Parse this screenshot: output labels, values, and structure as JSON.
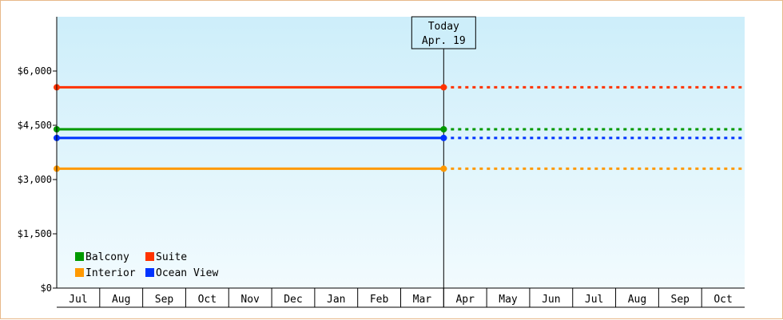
{
  "chart_data": {
    "type": "line",
    "title": "",
    "xlabel": "",
    "ylabel": "",
    "ylim": [
      0,
      7500
    ],
    "yticks": [
      0,
      1500,
      3000,
      4500,
      6000
    ],
    "ytick_labels": [
      "$0",
      "$1,500",
      "$3,000",
      "$4,500",
      "$6,000"
    ],
    "categories": [
      "Jul",
      "Aug",
      "Sep",
      "Oct",
      "Nov",
      "Dec",
      "Jan",
      "Feb",
      "Mar",
      "Apr",
      "May",
      "Jun",
      "Jul",
      "Aug",
      "Sep",
      "Oct"
    ],
    "today_marker": {
      "label": "Today",
      "date_label": "Apr. 19",
      "x": "Apr"
    },
    "series": [
      {
        "name": "Suite",
        "color": "#ff3300",
        "value": 5550
      },
      {
        "name": "Balcony",
        "color": "#009900",
        "value": 4390
      },
      {
        "name": "Ocean View",
        "color": "#0033ff",
        "value": 4150
      },
      {
        "name": "Interior",
        "color": "#ff9900",
        "value": 3300
      }
    ],
    "legend": {
      "placement": "bottom-left",
      "order": [
        "Balcony",
        "Suite",
        "Interior",
        "Ocean View"
      ]
    },
    "colors": {
      "background_top": "#cdeefa",
      "background_bottom": "#f2fbfe",
      "frame_border": "#e8b98a",
      "axis": "#000000"
    }
  }
}
